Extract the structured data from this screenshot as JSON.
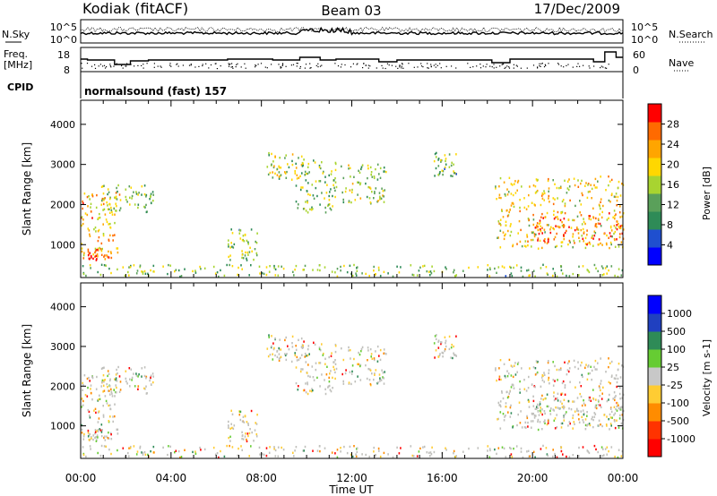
{
  "header": {
    "station": "Kodiak (fitACF)",
    "beam": "Beam 03",
    "date": "17/Dec/2009"
  },
  "noise_panel": {
    "left_label": "N.Sky",
    "right_label": "N.Search",
    "left_ticks": [
      "10^5",
      "10^0"
    ],
    "right_ticks": [
      "10^5",
      "10^0"
    ]
  },
  "freq_panel": {
    "left_label_line1": "Freq.",
    "left_label_line2": "[MHz]",
    "right_label": "Nave",
    "left_ticks": [
      "18",
      "8"
    ],
    "right_ticks": [
      "60",
      "0"
    ]
  },
  "cpid": {
    "label": "CPID",
    "value": "normalsound (fast) 157"
  },
  "power_panel": {
    "ylabel": "Slant Range [km]",
    "yticks": [
      "4000",
      "3000",
      "2000",
      "1000"
    ],
    "colorbar_label": "Power [dB]",
    "colorbar_ticks": [
      "28",
      "24",
      "20",
      "16",
      "12",
      "8",
      "4"
    ],
    "colors": [
      "#0000ff",
      "#1f4fcf",
      "#2e8b57",
      "#5aa05a",
      "#a8d430",
      "#ffd700",
      "#ffa500",
      "#ff6a00",
      "#ff0000"
    ]
  },
  "velocity_panel": {
    "ylabel": "Slant Range [km]",
    "yticks": [
      "4000",
      "3000",
      "2000",
      "1000"
    ],
    "colorbar_label": "Velocity [m s-1]",
    "colorbar_ticks": [
      "1000",
      "500",
      "100",
      "25",
      "-25",
      "-100",
      "-500",
      "-1000"
    ],
    "colors": [
      "#0000ff",
      "#2040c0",
      "#2e8b57",
      "#66cc33",
      "#c8c8c8",
      "#ffcc33",
      "#ff8c00",
      "#ff3300",
      "#ff0000"
    ],
    "ground_scatter_color": "#c0c0bc"
  },
  "xaxis": {
    "label": "Time UT",
    "ticks": [
      "00:00",
      "04:00",
      "08:00",
      "12:00",
      "16:00",
      "20:00",
      "00:00"
    ]
  },
  "chart_data": {
    "type": "heatmap",
    "x_range_hours": [
      0,
      24
    ],
    "y_range_km": [
      180,
      4600
    ],
    "title": "Kodiak (fitACF)",
    "xlabel": "Time UT",
    "ylabel": "Slant Range [km]",
    "power_colorbar_range_db": [
      0,
      32
    ],
    "velocity_colorbar_range": [
      -1000,
      1000
    ],
    "scatter_regions": [
      {
        "t0": 0.0,
        "t1": 1.7,
        "r0": 600,
        "r1": 2300,
        "power": 22
      },
      {
        "t0": 0.3,
        "t1": 1.3,
        "r0": 600,
        "r1": 900,
        "power": 30
      },
      {
        "t0": 0.9,
        "t1": 3.2,
        "r0": 1800,
        "r1": 2500,
        "power": 14
      },
      {
        "t0": 0.0,
        "t1": 24.0,
        "r0": 200,
        "r1": 500,
        "power": 14
      },
      {
        "t0": 6.5,
        "t1": 7.8,
        "r0": 600,
        "r1": 1400,
        "power": 14
      },
      {
        "t0": 8.2,
        "t1": 9.9,
        "r0": 2600,
        "r1": 3300,
        "power": 16
      },
      {
        "t0": 9.5,
        "t1": 11.3,
        "r0": 1800,
        "r1": 3100,
        "power": 14
      },
      {
        "t0": 11.5,
        "t1": 13.5,
        "r0": 2000,
        "r1": 3000,
        "power": 16
      },
      {
        "t0": 15.6,
        "t1": 16.6,
        "r0": 2700,
        "r1": 3300,
        "power": 14
      },
      {
        "t0": 18.3,
        "t1": 24.0,
        "r0": 900,
        "r1": 2700,
        "power": 20
      },
      {
        "t0": 20.0,
        "t1": 24.0,
        "r0": 1000,
        "r1": 1800,
        "power": 26
      }
    ]
  }
}
